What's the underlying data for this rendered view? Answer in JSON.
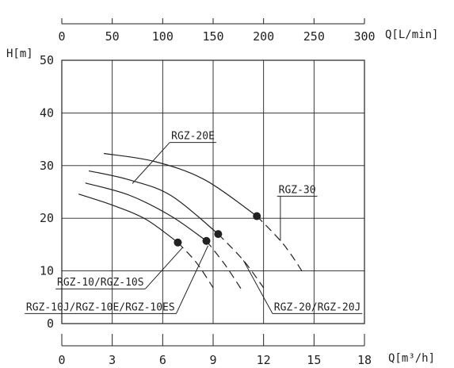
{
  "chart_data": {
    "type": "line",
    "ylabel": "H[m]",
    "xlabel_top": "Q[L/min]",
    "xlabel_bottom": "Q[m³/h]",
    "y_ticks": [
      0,
      10,
      20,
      30,
      40,
      50
    ],
    "x_ticks_top": [
      0,
      50,
      100,
      150,
      200,
      250,
      300
    ],
    "x_ticks_bottom": [
      0,
      3,
      6,
      9,
      12,
      15,
      18
    ],
    "ylim": [
      0,
      50
    ],
    "xlim_top": [
      0,
      300
    ],
    "xlim_bottom": [
      0,
      18
    ],
    "grid": true,
    "series": [
      {
        "name": "RGZ-10/RGZ-10S",
        "solid": [
          [
            1.0,
            24.6
          ],
          [
            3.0,
            22.5
          ],
          [
            5.0,
            19.8
          ],
          [
            6.9,
            15.4
          ]
        ],
        "dashed": [
          [
            6.9,
            15.4
          ],
          [
            8.0,
            11.6
          ],
          [
            9.0,
            6.8
          ]
        ],
        "marker": [
          6.9,
          15.4
        ]
      },
      {
        "name": "RGZ-10J/RGZ-10E/RGZ-10ES",
        "solid": [
          [
            1.4,
            26.7
          ],
          [
            4.0,
            24.4
          ],
          [
            6.5,
            20.4
          ],
          [
            8.6,
            15.7
          ]
        ],
        "dashed": [
          [
            8.6,
            15.7
          ],
          [
            9.7,
            11.2
          ],
          [
            10.7,
            6.4
          ]
        ],
        "marker": [
          8.6,
          15.7
        ]
      },
      {
        "name": "RGZ-20E",
        "solid": [
          [
            1.6,
            29.0
          ],
          [
            4.0,
            27.3
          ],
          [
            6.5,
            24.3
          ],
          [
            9.3,
            17.0
          ]
        ],
        "dashed": [
          [
            9.3,
            17.0
          ],
          [
            10.8,
            12.0
          ],
          [
            12.0,
            6.8
          ]
        ],
        "marker": [
          9.3,
          17.0
        ]
      },
      {
        "name": "RGZ-20/RGZ-20J",
        "solid": [],
        "dashed": [],
        "marker": null
      },
      {
        "name": "RGZ-30",
        "solid": [
          [
            2.5,
            32.3
          ],
          [
            5.5,
            30.8
          ],
          [
            8.5,
            27.3
          ],
          [
            11.6,
            20.4
          ]
        ],
        "dashed": [
          [
            11.6,
            20.4
          ],
          [
            13.2,
            15.0
          ],
          [
            14.4,
            9.4
          ]
        ],
        "marker": [
          11.6,
          20.4
        ]
      }
    ],
    "annotations": [
      {
        "text": "RGZ-20E",
        "anchor": [
          7.8,
          35.0
        ],
        "target": [
          4.2,
          26.6
        ]
      },
      {
        "text": "RGZ-30",
        "anchor": [
          14.0,
          24.8
        ],
        "target": [
          13.0,
          15.7
        ]
      },
      {
        "text": "RGZ-10/RGZ-10S",
        "anchor": [
          2.3,
          7.2
        ],
        "target": [
          7.2,
          14.5
        ]
      },
      {
        "text": "RGZ-10J/RGZ-10E/RGZ-10ES",
        "anchor": [
          2.3,
          2.5
        ],
        "target": [
          8.7,
          14.8
        ]
      },
      {
        "text": "RGZ-20/RGZ-20J",
        "anchor": [
          15.2,
          2.5
        ],
        "target": [
          10.8,
          12.0
        ]
      }
    ]
  }
}
